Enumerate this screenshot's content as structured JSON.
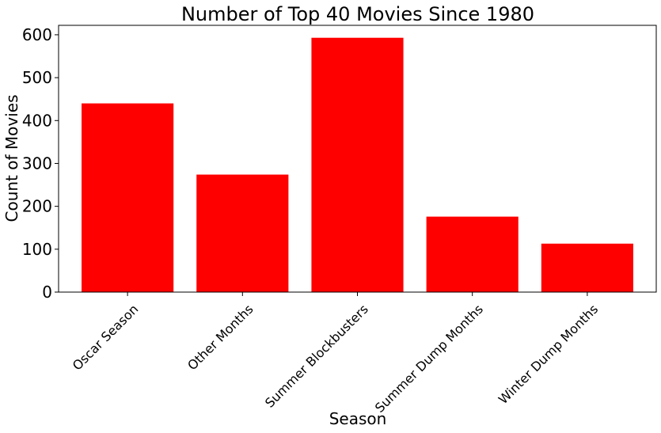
{
  "chart_data": {
    "type": "bar",
    "title": "Number of Top 40 Movies Since 1980",
    "xlabel": "Season",
    "ylabel": "Count of Movies",
    "categories": [
      "Oscar Season",
      "Other Months",
      "Summer Blockbusters",
      "Summer Dump Months",
      "Winter Dump Months"
    ],
    "values": [
      440,
      274,
      593,
      176,
      113
    ],
    "ylim": [
      0,
      622
    ],
    "yticks": [
      0,
      100,
      200,
      300,
      400,
      500,
      600
    ],
    "bar_color": "#ff0000",
    "grid": false,
    "legend": "none"
  }
}
